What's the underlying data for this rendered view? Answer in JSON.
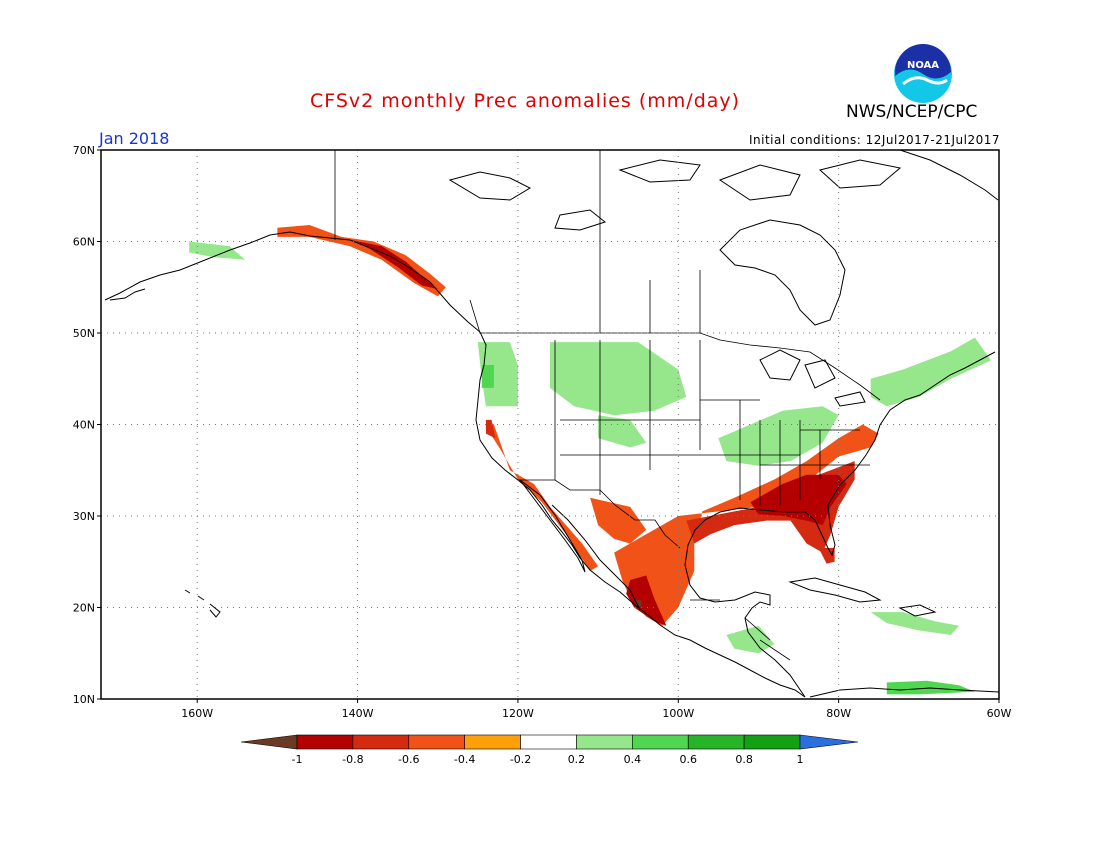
{
  "title": "CFSv2 monthly Prec anomalies (mm/day)",
  "agency": "NWS/NCEP/CPC",
  "month_label": "Jan 2018",
  "initial_conditions": "Initial conditions: 12Jul2017-21Jul2017",
  "logo_text": "NOAA",
  "map": {
    "lon_range": [
      -172,
      -60
    ],
    "lat_range": [
      10,
      70
    ],
    "lat_ticks": [
      {
        "value": 10,
        "label": "10N"
      },
      {
        "value": 20,
        "label": "20N"
      },
      {
        "value": 30,
        "label": "30N"
      },
      {
        "value": 40,
        "label": "40N"
      },
      {
        "value": 50,
        "label": "50N"
      },
      {
        "value": 60,
        "label": "60N"
      },
      {
        "value": 70,
        "label": "70N"
      }
    ],
    "lon_ticks": [
      {
        "value": -160,
        "label": "160W"
      },
      {
        "value": -140,
        "label": "140W"
      },
      {
        "value": -120,
        "label": "120W"
      },
      {
        "value": -100,
        "label": "100W"
      },
      {
        "value": -80,
        "label": "80W"
      },
      {
        "value": -60,
        "label": "60W"
      }
    ],
    "grid": "dotted"
  },
  "colorbar": {
    "labels": [
      "-1",
      "-0.8",
      "-0.6",
      "-0.4",
      "-0.2",
      "0.2",
      "0.4",
      "0.6",
      "0.8",
      "1"
    ],
    "colors": [
      "#6b3a25",
      "#b40000",
      "#d42a12",
      "#f05218",
      "#ffa00a",
      "#ffffff",
      "#96e68c",
      "#50d650",
      "#28b428",
      "#14a014",
      "#2a6fe0"
    ]
  },
  "anomaly_regions": [
    {
      "name": "alaska-south-coast",
      "level": -0.4,
      "points": [
        [
          -150,
          61.5
        ],
        [
          -146,
          61.8
        ],
        [
          -142,
          60.5
        ],
        [
          -138,
          60
        ],
        [
          -134,
          58.5
        ],
        [
          -131,
          56.5
        ],
        [
          -129,
          55
        ],
        [
          -130,
          54
        ],
        [
          -133,
          55.5
        ],
        [
          -137,
          58
        ],
        [
          -141,
          59.5
        ],
        [
          -146,
          60.5
        ],
        [
          -150,
          60.5
        ]
      ]
    },
    {
      "name": "alaska-panhandle-core",
      "level": -0.8,
      "points": [
        [
          -141,
          60.2
        ],
        [
          -137,
          59.5
        ],
        [
          -134,
          57.8
        ],
        [
          -131,
          55.5
        ],
        [
          -130,
          54.8
        ],
        [
          -132,
          55.2
        ],
        [
          -135,
          57.2
        ],
        [
          -139,
          59.5
        ]
      ]
    },
    {
      "name": "alaska-west-green",
      "level": 0.4,
      "points": [
        [
          -161,
          60
        ],
        [
          -156,
          59.5
        ],
        [
          -154,
          58
        ],
        [
          -158,
          58.3
        ],
        [
          -161,
          58.8
        ]
      ]
    },
    {
      "name": "pacific-northwest-green",
      "level": 0.4,
      "points": [
        [
          -125,
          49
        ],
        [
          -121,
          49
        ],
        [
          -120,
          46.5
        ],
        [
          -120,
          42
        ],
        [
          -124,
          42
        ],
        [
          -124.5,
          45
        ]
      ]
    },
    {
      "name": "pnw-darker",
      "level": 0.6,
      "points": [
        [
          -124.5,
          46.5
        ],
        [
          -123,
          46.5
        ],
        [
          -123,
          44
        ],
        [
          -124.5,
          44
        ]
      ]
    },
    {
      "name": "northern-plains-green",
      "level": 0.4,
      "points": [
        [
          -116,
          49
        ],
        [
          -105,
          49
        ],
        [
          -100,
          46
        ],
        [
          -99,
          43
        ],
        [
          -103,
          41.5
        ],
        [
          -108,
          41
        ],
        [
          -113,
          42
        ],
        [
          -116,
          44
        ]
      ]
    },
    {
      "name": "colorado-green",
      "level": 0.4,
      "points": [
        [
          -110,
          41
        ],
        [
          -106,
          40.5
        ],
        [
          -104,
          38
        ],
        [
          -106,
          37.5
        ],
        [
          -110,
          38.5
        ]
      ]
    },
    {
      "name": "ohio-valley-green",
      "level": 0.4,
      "points": [
        [
          -95,
          38.5
        ],
        [
          -87,
          41.5
        ],
        [
          -82,
          42
        ],
        [
          -80,
          41
        ],
        [
          -82,
          38
        ],
        [
          -86,
          36
        ],
        [
          -90,
          35.5
        ],
        [
          -94,
          36
        ]
      ]
    },
    {
      "name": "northeast-green",
      "level": 0.4,
      "points": [
        [
          -76,
          45
        ],
        [
          -72,
          46
        ],
        [
          -66,
          48
        ],
        [
          -63,
          49.5
        ],
        [
          -61,
          47
        ],
        [
          -66,
          45
        ],
        [
          -70,
          43
        ],
        [
          -74,
          42
        ],
        [
          -76,
          43
        ]
      ]
    },
    {
      "name": "caribbean-green",
      "level": 0.4,
      "points": [
        [
          -76,
          19.5
        ],
        [
          -72,
          19.5
        ],
        [
          -68,
          18.5
        ],
        [
          -65,
          18
        ],
        [
          -66,
          17
        ],
        [
          -70,
          17.5
        ],
        [
          -74,
          18.3
        ]
      ]
    },
    {
      "name": "central-america-green",
      "level": 0.4,
      "points": [
        [
          -94,
          17
        ],
        [
          -90,
          18
        ],
        [
          -88,
          16
        ],
        [
          -90,
          15
        ],
        [
          -93,
          15.5
        ]
      ]
    },
    {
      "name": "south-caribbean-green",
      "level": 0.6,
      "points": [
        [
          -74,
          11.8
        ],
        [
          -69,
          12
        ],
        [
          -65,
          11.5
        ],
        [
          -63,
          10.8
        ],
        [
          -70,
          10.5
        ],
        [
          -74,
          10.5
        ]
      ]
    },
    {
      "name": "california-coast",
      "level": -0.4,
      "points": [
        [
          -124,
          40.5
        ],
        [
          -123,
          40
        ],
        [
          -121,
          35
        ],
        [
          -118,
          33.5
        ],
        [
          -116,
          31
        ],
        [
          -114,
          29
        ],
        [
          -112,
          27
        ],
        [
          -110,
          24.5
        ],
        [
          -111,
          24
        ],
        [
          -114,
          28
        ],
        [
          -117,
          31.5
        ],
        [
          -120,
          34
        ],
        [
          -122,
          37
        ],
        [
          -123.8,
          39.5
        ]
      ]
    },
    {
      "name": "california-north-core",
      "level": -0.6,
      "points": [
        [
          -124,
          40.5
        ],
        [
          -123.3,
          40.5
        ],
        [
          -122.8,
          38.5
        ],
        [
          -124,
          39
        ]
      ]
    },
    {
      "name": "southwest-desert",
      "level": -0.4,
      "points": [
        [
          -111,
          32
        ],
        [
          -106,
          31
        ],
        [
          -104,
          28.5
        ],
        [
          -106,
          27
        ],
        [
          -108,
          27.5
        ],
        [
          -110,
          29
        ]
      ]
    },
    {
      "name": "mexico-gulf-southeast-orange",
      "level": -0.4,
      "points": [
        [
          -108,
          26
        ],
        [
          -104,
          28
        ],
        [
          -100,
          30
        ],
        [
          -95,
          30.5
        ],
        [
          -90,
          31
        ],
        [
          -85,
          33
        ],
        [
          -80,
          36.5
        ],
        [
          -76,
          37.5
        ],
        [
          -75,
          39
        ],
        [
          -77,
          40
        ],
        [
          -80,
          38.5
        ],
        [
          -84,
          36
        ],
        [
          -88,
          34
        ],
        [
          -93,
          32
        ],
        [
          -97,
          30.5
        ],
        [
          -98,
          27
        ],
        [
          -98,
          24
        ],
        [
          -100,
          20
        ],
        [
          -102,
          18
        ],
        [
          -104,
          19
        ],
        [
          -106,
          21
        ],
        [
          -107,
          23
        ]
      ]
    },
    {
      "name": "mexico-pacific-red",
      "level": -0.8,
      "points": [
        [
          -106,
          23
        ],
        [
          -104,
          23.5
        ],
        [
          -103,
          21
        ],
        [
          -101.5,
          18
        ],
        [
          -103,
          18.5
        ],
        [
          -105.5,
          20
        ],
        [
          -106.5,
          21.5
        ]
      ]
    },
    {
      "name": "mexico-brown",
      "level": -1.0,
      "points": [
        [
          -105.3,
          20.8
        ],
        [
          -104.6,
          20.8
        ],
        [
          -104.6,
          20.1
        ],
        [
          -105.3,
          20.1
        ]
      ]
    },
    {
      "name": "texas-gulf-red",
      "level": -0.6,
      "points": [
        [
          -99,
          29.5
        ],
        [
          -96,
          30
        ],
        [
          -93,
          30.5
        ],
        [
          -90,
          31
        ],
        [
          -88,
          32.5
        ],
        [
          -84,
          34
        ],
        [
          -81,
          35
        ],
        [
          -78,
          36
        ],
        [
          -78,
          34
        ],
        [
          -80,
          31
        ],
        [
          -81,
          28
        ],
        [
          -82,
          26
        ],
        [
          -84,
          27
        ],
        [
          -86,
          29.5
        ],
        [
          -89,
          29.5
        ],
        [
          -93,
          29
        ],
        [
          -96,
          28
        ],
        [
          -98,
          27
        ]
      ]
    },
    {
      "name": "southeast-dark-red",
      "level": -0.8,
      "points": [
        [
          -91,
          31.5
        ],
        [
          -87,
          33.5
        ],
        [
          -84,
          34.5
        ],
        [
          -80,
          34.5
        ],
        [
          -79,
          33.5
        ],
        [
          -81,
          31
        ],
        [
          -82,
          29
        ],
        [
          -84,
          29.5
        ],
        [
          -87,
          30
        ],
        [
          -90,
          30.2
        ]
      ]
    },
    {
      "name": "florida-tip",
      "level": -0.6,
      "points": [
        [
          -82.5,
          26.5
        ],
        [
          -80.5,
          26.5
        ],
        [
          -80.5,
          25
        ],
        [
          -81.5,
          24.8
        ]
      ]
    }
  ]
}
